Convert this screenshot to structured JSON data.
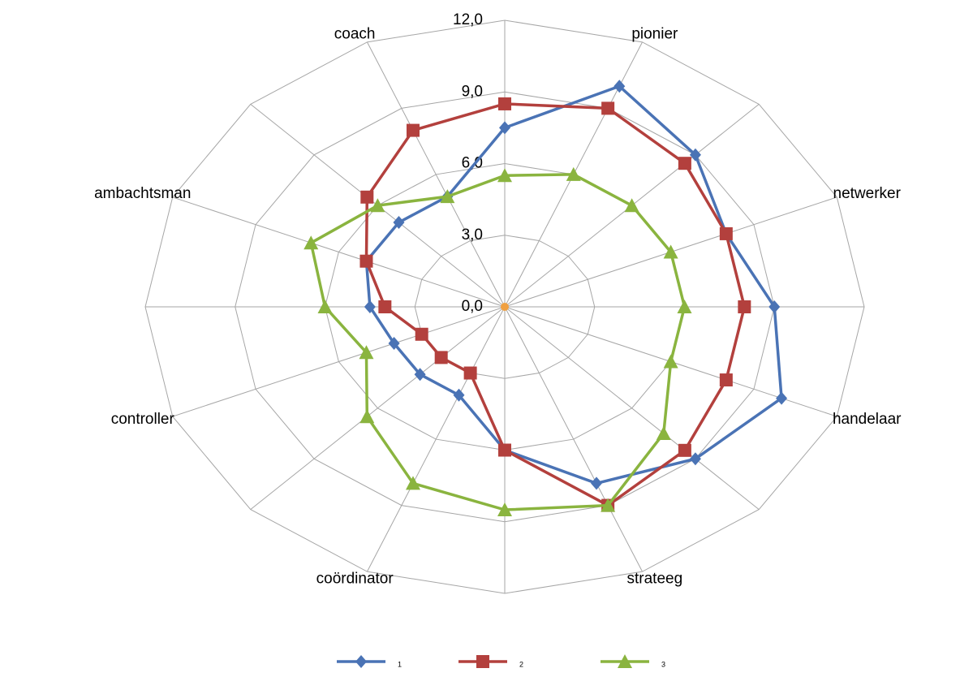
{
  "chart_data": {
    "type": "radar",
    "categories": [
      null,
      "pionier",
      null,
      "netwerker",
      null,
      "handelaar",
      null,
      "strateeg",
      null,
      "coördinator",
      null,
      "controller",
      null,
      "ambachtsman",
      null,
      "coach"
    ],
    "ylim": [
      0,
      12
    ],
    "yticks": [
      {
        "value": 0,
        "label": "0,0"
      },
      {
        "value": 3,
        "label": "3,0"
      },
      {
        "value": 6,
        "label": "6,0"
      },
      {
        "value": 9,
        "label": "9,0"
      },
      {
        "value": 12,
        "label": "12,0"
      }
    ],
    "grid": true,
    "legend": "bottom",
    "series": [
      {
        "name": "1",
        "color": "#4a73b5",
        "marker": "diamond",
        "values": [
          7.5,
          10,
          9,
          8,
          9,
          10,
          9,
          8,
          6,
          4,
          4,
          4,
          4.5,
          5,
          5,
          5
        ]
      },
      {
        "name": "2",
        "color": "#b3403d",
        "marker": "square",
        "values": [
          8.5,
          9,
          8.5,
          8,
          8,
          8,
          8.5,
          9,
          6,
          3,
          3,
          3,
          4,
          5,
          6.5,
          8
        ]
      },
      {
        "name": "3",
        "color": "#8ab43f",
        "marker": "triangle",
        "values": [
          5.5,
          6,
          6,
          6,
          6,
          6,
          7.5,
          9,
          8.5,
          8,
          6.5,
          5,
          6,
          7,
          6,
          5
        ]
      }
    ]
  }
}
